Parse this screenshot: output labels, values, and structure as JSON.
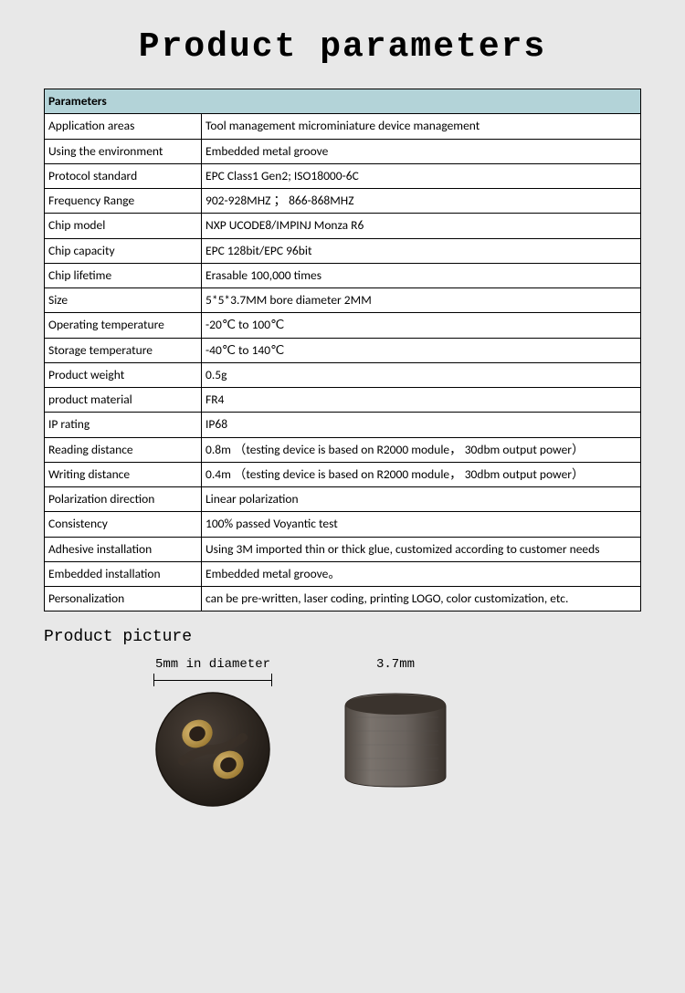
{
  "title": "Product parameters",
  "table": {
    "header": "Parameters",
    "rows": [
      {
        "label": "Application areas",
        "value": "Tool management microminiature device management"
      },
      {
        "label": "Using the environment",
        "value": "Embedded metal groove",
        "label_justified": true
      },
      {
        "label": "Protocol standard",
        "value": "EPC Class1 Gen2; ISO18000-6C"
      },
      {
        "label": "Frequency Range",
        "value": "902-928MHZ ；  866-868MHZ"
      },
      {
        "label": "Chip model",
        "value": "NXP UCODE8/IMPINJ Monza R6"
      },
      {
        "label": "Chip capacity",
        "value": "EPC 128bit/EPC 96bit"
      },
      {
        "label": "Chip lifetime",
        "value": "Erasable 100,000 times"
      },
      {
        "label": "Size",
        "value": "5*5*3.7MM    bore diameter 2MM"
      },
      {
        "label": "Operating temperature",
        "value": "-20℃ to 100℃"
      },
      {
        "label": "Storage temperature",
        "value": "-40℃ to 140℃"
      },
      {
        "label": "Product weight",
        "value": "0.5g"
      },
      {
        "label": "product material",
        "value": "FR4"
      },
      {
        "label": "IP rating",
        "value": "IP68"
      },
      {
        "label": "Reading distance",
        "value": "0.8m （testing device is based on R2000 module， 30dbm output power）",
        "value_justified": true
      },
      {
        "label": "Writing distance",
        "value": "0.4m （testing device is based on R2000 module， 30dbm output power）",
        "value_justified": true
      },
      {
        "label": "Polarization direction",
        "value": "Linear polarization"
      },
      {
        "label": "Consistency",
        "value": "100% passed Voyantic test"
      },
      {
        "label": "Adhesive installation",
        "value": "Using 3M imported thin or thick glue, customized according to customer needs",
        "value_justified": true
      },
      {
        "label": "Embedded installation",
        "value": "Embedded metal groove。"
      },
      {
        "label": "Personalization",
        "value": "can be pre-written, laser coding, printing LOGO, color customization, etc.",
        "value_justified": true
      }
    ]
  },
  "product_picture": {
    "section_title": "Product picture",
    "pic1_label": "5mm in diameter",
    "pic2_label": "3.7mm",
    "colors": {
      "tag_body": "#2e2822",
      "tag_body_light": "#4a4038",
      "gold": "#ba9440",
      "gold_light": "#d8b870",
      "side_body": "#6a635e",
      "side_body_dark": "#4d4640",
      "side_edge": "#3a332d"
    }
  },
  "styling": {
    "page_bg": "#e8e8e8",
    "table_header_bg": "#b3d3d8",
    "border_color": "#000000",
    "title_font": "Courier New",
    "body_font": "Calibri",
    "title_fontsize": 38,
    "body_fontsize": 13.5
  }
}
